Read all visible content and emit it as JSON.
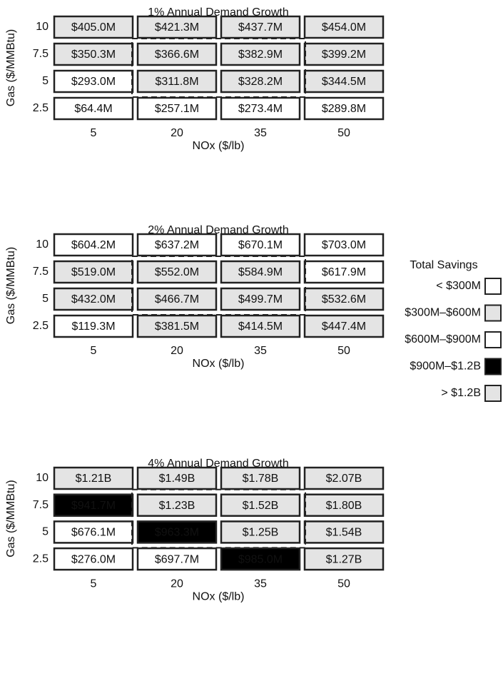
{
  "chart_data": [
    {
      "type": "heatmap",
      "title": "1% Annual Demand Growth",
      "x_label": "NOx ($/lb)",
      "y_label": "Gas ($/MMBtu)",
      "x_categories": [
        "5",
        "20",
        "35",
        "50"
      ],
      "y_categories": [
        "10",
        "7.5",
        "5",
        "2.5"
      ],
      "values": [
        [
          405000000,
          421300000,
          437700000,
          454000000
        ],
        [
          350300000,
          366600000,
          382900000,
          399200000
        ],
        [
          293000000,
          311800000,
          328200000,
          344500000
        ],
        [
          64400000,
          257100000,
          273400000,
          289800000
        ]
      ],
      "value_labels": [
        [
          "$405.0M",
          "$421.3M",
          "$437.7M",
          "$454.0M"
        ],
        [
          "$350.3M",
          "$366.6M",
          "$382.9M",
          "$399.2M"
        ],
        [
          "$293.0M",
          "$311.8M",
          "$328.2M",
          "$344.5M"
        ],
        [
          "$64.4M",
          "$257.1M",
          "$273.4M",
          "$289.8M"
        ]
      ]
    },
    {
      "type": "heatmap",
      "title": "2% Annual Demand Growth",
      "x_label": "NOx ($/lb)",
      "y_label": "Gas ($/MMBtu)",
      "x_categories": [
        "5",
        "20",
        "35",
        "50"
      ],
      "y_categories": [
        "10",
        "7.5",
        "5",
        "2.5"
      ],
      "values": [
        [
          604200000,
          637200000,
          670100000,
          703000000
        ],
        [
          519000000,
          552000000,
          584900000,
          617900000
        ],
        [
          432000000,
          466700000,
          499700000,
          532600000
        ],
        [
          119300000,
          381500000,
          414500000,
          447400000
        ]
      ],
      "value_labels": [
        [
          "$604.2M",
          "$637.2M",
          "$670.1M",
          "$703.0M"
        ],
        [
          "$519.0M",
          "$552.0M",
          "$584.9M",
          "$617.9M"
        ],
        [
          "$432.0M",
          "$466.7M",
          "$499.7M",
          "$532.6M"
        ],
        [
          "$119.3M",
          "$381.5M",
          "$414.5M",
          "$447.4M"
        ]
      ]
    },
    {
      "type": "heatmap",
      "title": "4% Annual Demand Growth",
      "x_label": "NOx ($/lb)",
      "y_label": "Gas ($/MMBtu)",
      "x_categories": [
        "5",
        "20",
        "35",
        "50"
      ],
      "y_categories": [
        "10",
        "7.5",
        "5",
        "2.5"
      ],
      "values": [
        [
          1210000000,
          1490000000,
          1780000000,
          2070000000
        ],
        [
          941700000,
          1230000000,
          1520000000,
          1800000000
        ],
        [
          676100000,
          963300000,
          1250000000,
          1540000000
        ],
        [
          276000000,
          697700000,
          985000000,
          1270000000
        ]
      ],
      "value_labels": [
        [
          "$1.21B",
          "$1.49B",
          "$1.78B",
          "$2.07B"
        ],
        [
          "$941.7M",
          "$1.23B",
          "$1.52B",
          "$1.80B"
        ],
        [
          "$676.1M",
          "$963.3M",
          "$1.25B",
          "$1.54B"
        ],
        [
          "$276.0M",
          "$697.7M",
          "$985.0M",
          "$1.27B"
        ]
      ]
    }
  ],
  "legend": {
    "title": "Total Savings",
    "bins": [
      {
        "label": "< $300M",
        "to": 300000000,
        "color": "#ffffff"
      },
      {
        "label": "$300M–$600M",
        "from": 300000000,
        "to": 600000000,
        "color": "#e4e4e4"
      },
      {
        "label": "$600M–$900M",
        "from": 600000000,
        "to": 900000000,
        "color": "#ffffff"
      },
      {
        "label": "$900M–$1.2B",
        "from": 900000000,
        "to": 1200000000,
        "color": "#000000"
      },
      {
        "label": "> $1.2B",
        "from": 1200000000,
        "color": "#e4e4e4"
      }
    ]
  }
}
